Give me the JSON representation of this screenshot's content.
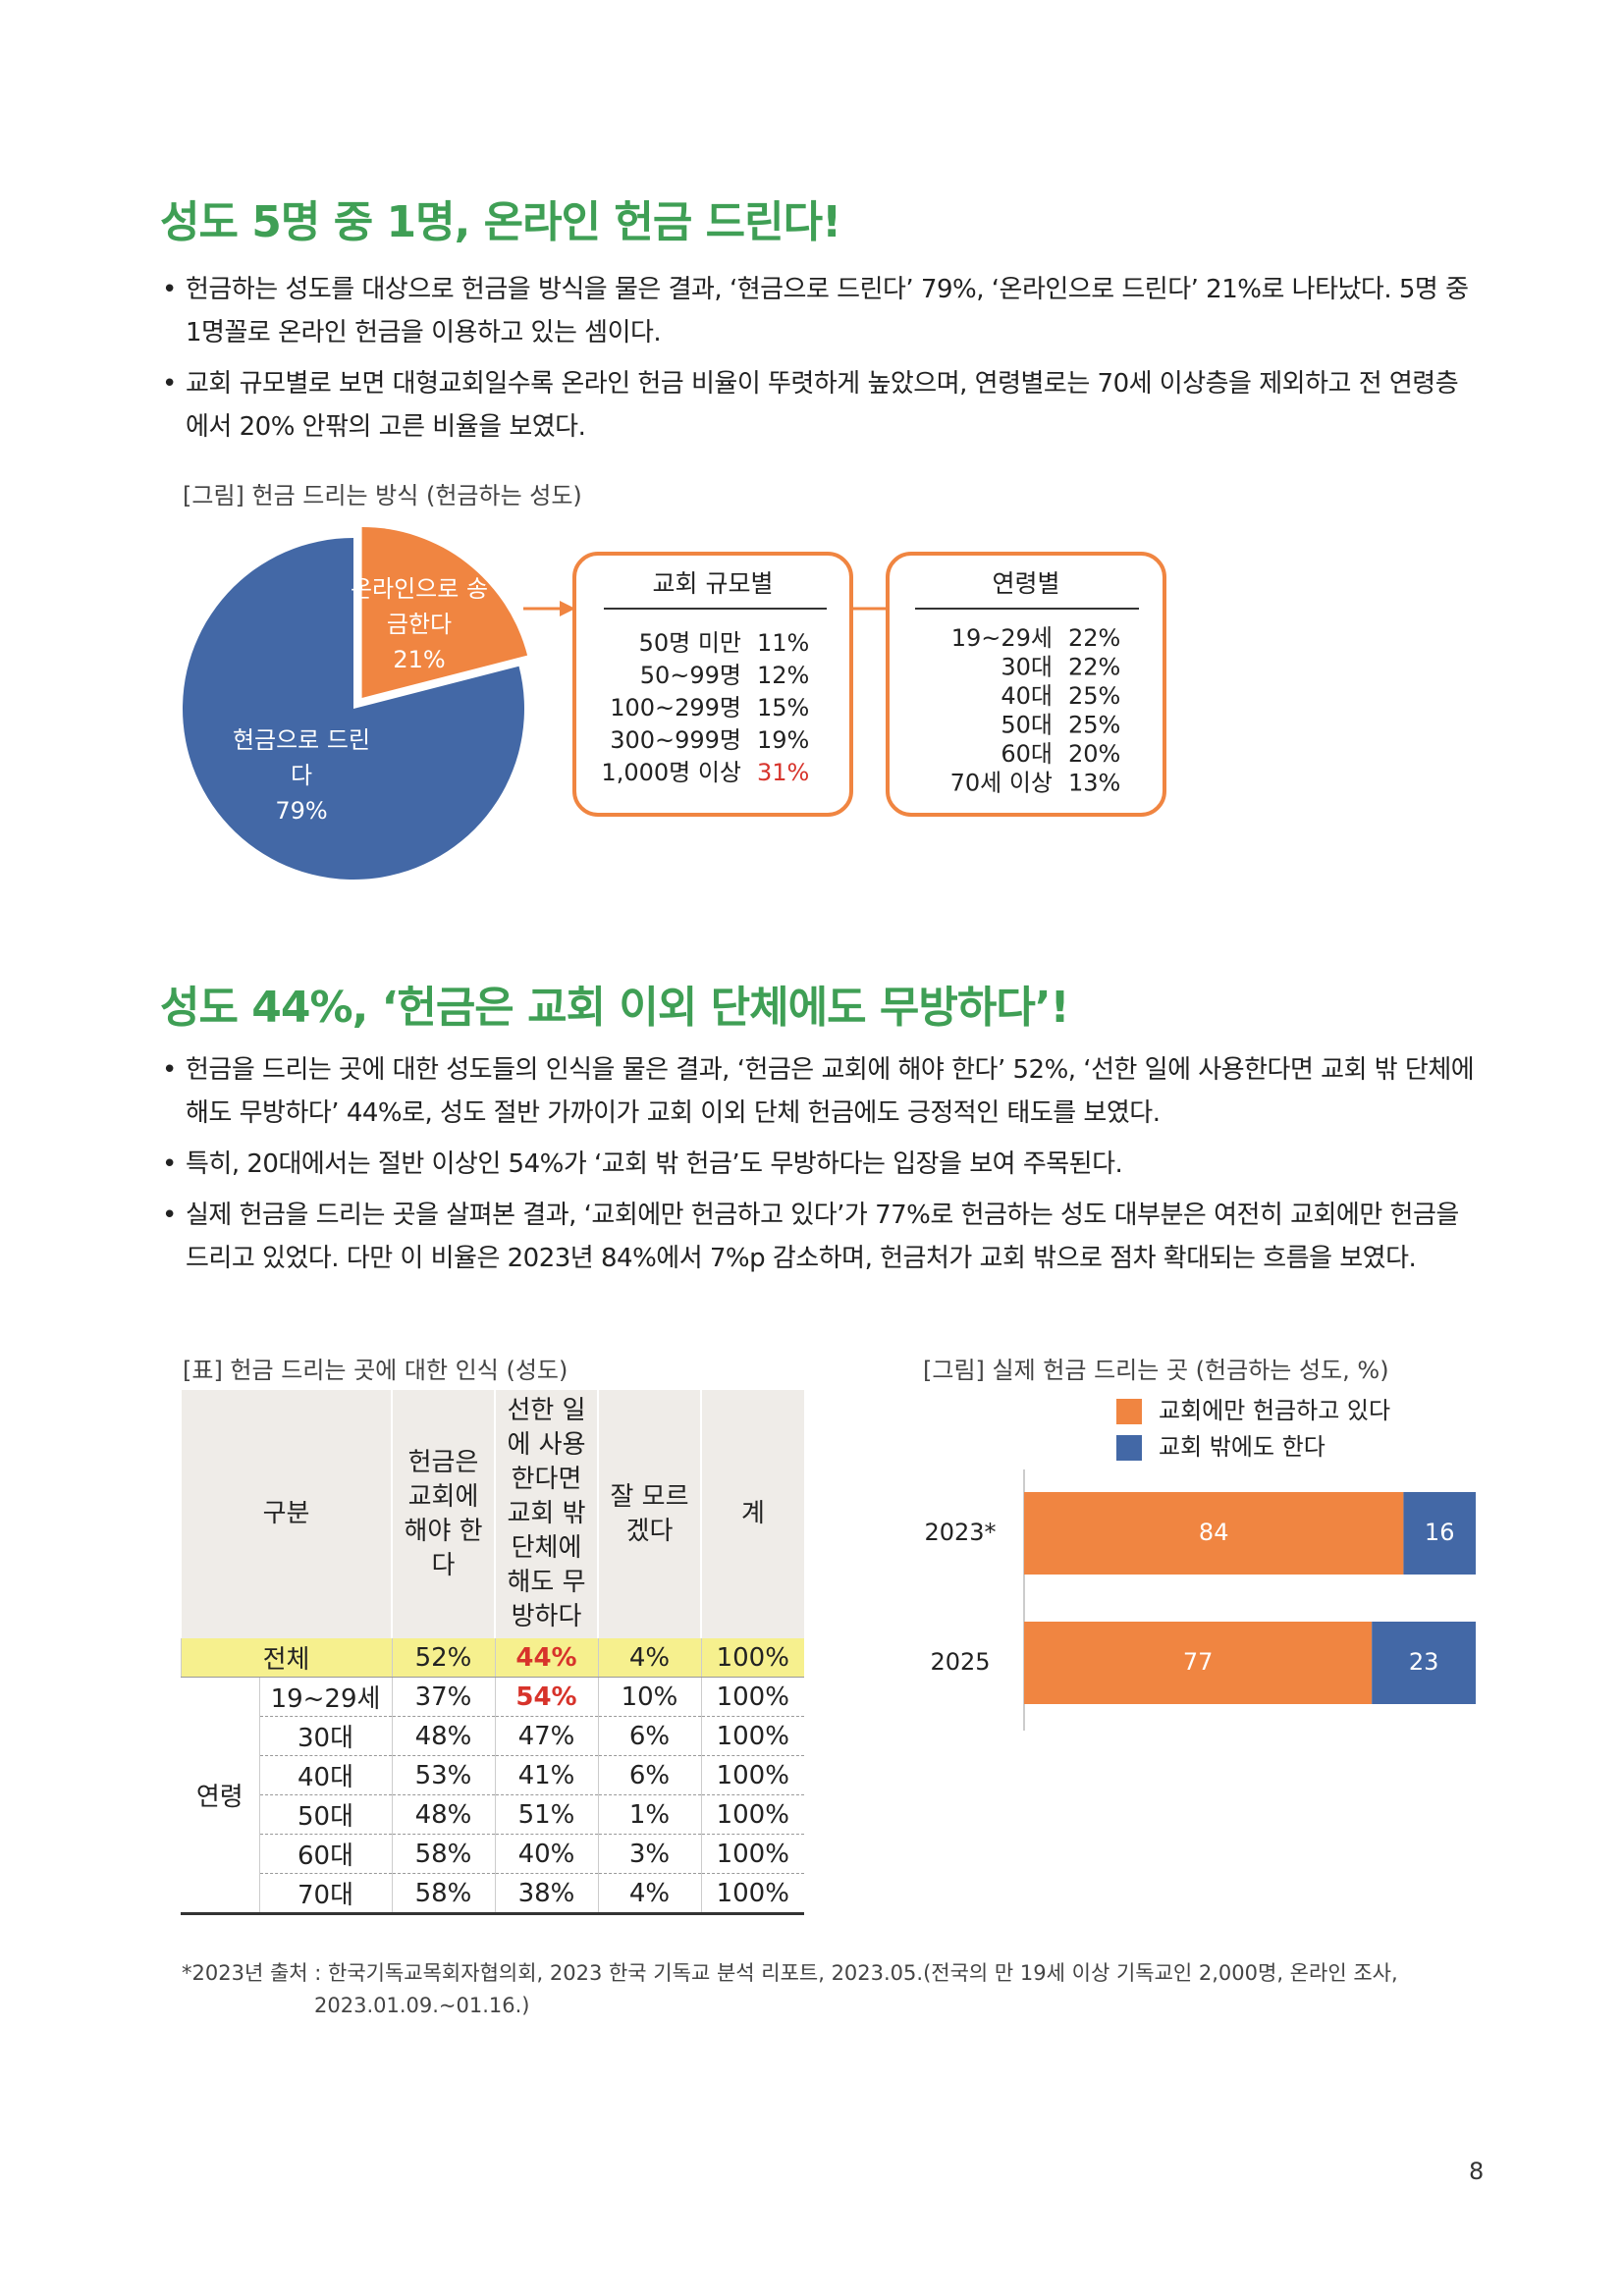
{
  "sections": [
    {
      "title": "성도 5명 중 1명, 온라인 헌금 드린다!",
      "bullets": [
        "헌금하는 성도를 대상으로 헌금을 방식을 물은 결과, ‘현금으로 드린다’ 79%, ‘온라인으로 드린다’ 21%로 나타났다. 5명 중 1명꼴로 온라인 헌금을 이용하고 있는 셈이다.",
        "교회 규모별로 보면 대형교회일수록 온라인 헌금 비율이 뚜렷하게 높았으며, 연령별로는 70세 이상층을 제외하고 전 연령층에서 20% 안팎의 고른 비율을 보였다."
      ]
    },
    {
      "title": "성도 44%, ‘헌금은 교회 이외 단체에도 무방하다’!",
      "bullets": [
        "헌금을 드리는 곳에 대한 성도들의 인식을 물은 결과, ‘헌금은 교회에 해야 한다’ 52%, ‘선한 일에 사용한다면 교회 밖 단체에 해도 무방하다’ 44%로, 성도 절반 가까이가 교회 이외 단체 헌금에도 긍정적인 태도를 보였다.",
        "특히, 20대에서는 절반 이상인 54%가 ‘교회 밖 헌금’도 무방하다는 입장을 보여 주목된다.",
        "실제 헌금을 드리는 곳을 살펴본 결과, ‘교회에만 헌금하고 있다’가 77%로 헌금하는 성도 대부분은 여전히 교회에만 헌금을 드리고 있었다. 다만 이 비율은 2023년 84%에서 7%p 감소하며, 헌금처가 교회 밖으로 점차 확대되는 흐름을 보였다."
      ]
    }
  ],
  "chart_data": [
    {
      "type": "pie",
      "title": "[그림] 헌금 드리는 방식 (헌금하는 성도)",
      "categories": [
        "온라인으로 송금한다",
        "현금으로 드린다"
      ],
      "values": [
        21,
        79
      ],
      "value_labels": [
        "21%",
        "79%"
      ],
      "colors": [
        "#f08541",
        "#4368a6"
      ]
    },
    {
      "type": "bar",
      "title": "[그림] 실제 헌금 드리는 곳 (헌금하는 성도, %)",
      "orientation": "horizontal",
      "stacked": true,
      "categories": [
        "2023*",
        "2025"
      ],
      "xlim": [
        0,
        100
      ],
      "series": [
        {
          "name": "교회에만 헌금하고 있다",
          "color": "#f08541",
          "values": [
            84,
            77
          ]
        },
        {
          "name": "교회 밖에도 한다",
          "color": "#4368a6",
          "values": [
            16,
            23
          ]
        }
      ]
    }
  ],
  "breakdowns": [
    {
      "title": "교회 규모별",
      "rows": [
        {
          "label": "50명 미만",
          "value": "11%"
        },
        {
          "label": "50~99명",
          "value": "12%"
        },
        {
          "label": "100~299명",
          "value": "15%"
        },
        {
          "label": "300~999명",
          "value": "19%"
        },
        {
          "label": "1,000명 이상",
          "value": "31%"
        }
      ]
    },
    {
      "title": "연령별",
      "rows": [
        {
          "label": "19~29세",
          "value": "22%"
        },
        {
          "label": "30대",
          "value": "22%"
        },
        {
          "label": "40대",
          "value": "25%"
        },
        {
          "label": "50대",
          "value": "25%"
        },
        {
          "label": "60대",
          "value": "20%"
        },
        {
          "label": "70세 이상",
          "value": "13%"
        }
      ]
    }
  ],
  "table": {
    "caption": "[표] 헌금 드리는 곳에 대한 인식 (성도)",
    "header": [
      "구분",
      "헌금은 교회에 해야 한다",
      "선한 일에 사용한다면 교회 밖 단체에 해도 무방하다",
      "잘 모르겠다",
      "계"
    ],
    "total": {
      "label": "전체",
      "cells": [
        "52%",
        "44%",
        "4%",
        "100%"
      ]
    },
    "group": {
      "label": "연령",
      "rows": [
        {
          "label": "19~29세",
          "cells": [
            "37%",
            "54%",
            "10%",
            "100%"
          ]
        },
        {
          "label": "30대",
          "cells": [
            "48%",
            "47%",
            "6%",
            "100%"
          ]
        },
        {
          "label": "40대",
          "cells": [
            "53%",
            "41%",
            "6%",
            "100%"
          ]
        },
        {
          "label": "50대",
          "cells": [
            "48%",
            "51%",
            "1%",
            "100%"
          ]
        },
        {
          "label": "60대",
          "cells": [
            "58%",
            "40%",
            "3%",
            "100%"
          ]
        },
        {
          "label": "70대",
          "cells": [
            "58%",
            "38%",
            "4%",
            "100%"
          ]
        }
      ]
    }
  },
  "footnote": "*2023년 출처 : 한국기독교목회자협의회, 2023 한국 기독교 분석 리포트, 2023.05.(전국의 만 19세 이상 기독교인 2,000명, 온라인 조사, 2023.01.09.~01.16.)",
  "page_number": "8"
}
